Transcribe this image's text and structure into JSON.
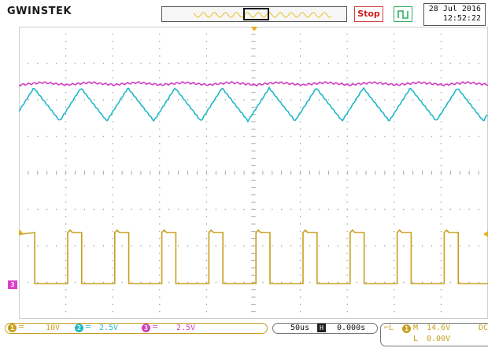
{
  "header": {
    "brand": "GWINSTEK",
    "run_state": "Stop",
    "date": "28 Jul 2016",
    "time": "12:52:22"
  },
  "channels": [
    {
      "number": "1",
      "scale": "10V",
      "color": "#c8a020"
    },
    {
      "number": "2",
      "scale": "2.5V",
      "color": "#20b8c8"
    },
    {
      "number": "3",
      "scale": "2.5V",
      "color": "#d040c0"
    }
  ],
  "side_marker": "3",
  "timebase": {
    "scale": "50us",
    "h_icon": "H",
    "position": "0.000s"
  },
  "trigger": {
    "channel": "1",
    "mode_prefix": "M",
    "level": "14.6V",
    "coupling": "DC",
    "slope_prefix": "L",
    "secondary": "0.00V"
  },
  "colors": {
    "ch1": "#c8a020",
    "ch2": "#20b8c8",
    "ch3": "#d040c0",
    "grid": "#9a9a9a",
    "stop": "#d01a1a",
    "trigger": "#30b060"
  }
}
